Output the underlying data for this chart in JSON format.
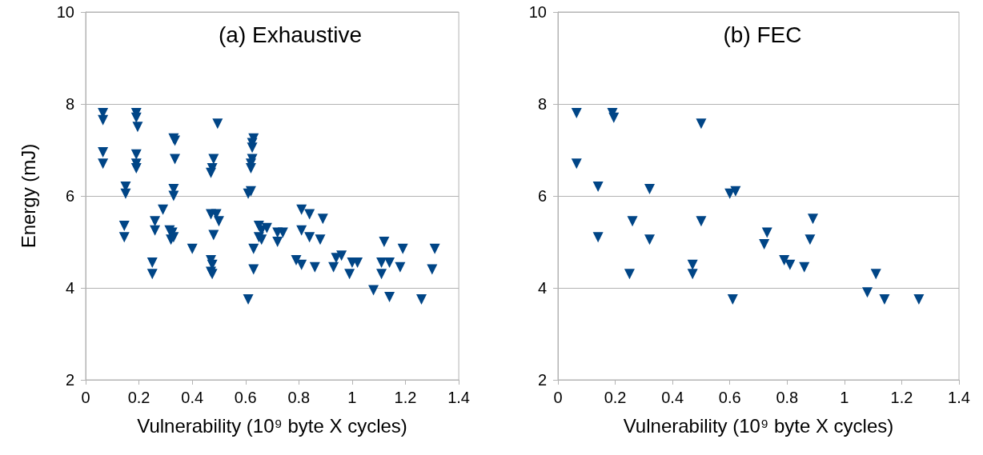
{
  "chart_data": [
    {
      "type": "scatter",
      "title": "(a) Exhaustive",
      "xlabel": "Vulnerability (10⁹ byte X cycles)",
      "ylabel": "Energy (mJ)",
      "xlim": [
        0,
        1.4
      ],
      "xticks": [
        0,
        0.2,
        0.4,
        0.6,
        0.8,
        1,
        1.2,
        1.4
      ],
      "ylim": [
        2,
        10
      ],
      "yticks": [
        2,
        4,
        6,
        8,
        10
      ],
      "grid": "y",
      "marker": "triangle",
      "series": [
        {
          "color": "#004586",
          "x": [
            0.065,
            0.065,
            0.065,
            0.065,
            0.19,
            0.19,
            0.195,
            0.19,
            0.19,
            0.19,
            0.15,
            0.15,
            0.145,
            0.145,
            0.25,
            0.25,
            0.26,
            0.26,
            0.29,
            0.33,
            0.335,
            0.335,
            0.33,
            0.33,
            0.315,
            0.32,
            0.325,
            0.33,
            0.4,
            0.47,
            0.47,
            0.47,
            0.475,
            0.475,
            0.48,
            0.475,
            0.47,
            0.49,
            0.48,
            0.495,
            0.5,
            0.61,
            0.61,
            0.62,
            0.625,
            0.625,
            0.63,
            0.62,
            0.625,
            0.62,
            0.63,
            0.63,
            0.65,
            0.65,
            0.66,
            0.66,
            0.68,
            0.72,
            0.72,
            0.74,
            0.79,
            0.81,
            0.81,
            0.81,
            0.84,
            0.84,
            0.86,
            0.89,
            0.88,
            0.93,
            0.94,
            0.96,
            0.99,
            1.0,
            1.02,
            1.08,
            1.11,
            1.11,
            1.12,
            1.14,
            1.14,
            1.18,
            1.19,
            1.26,
            1.3,
            1.31
          ],
          "values": [
            7.8,
            7.65,
            6.95,
            6.7,
            7.8,
            7.7,
            7.5,
            6.9,
            6.7,
            6.6,
            6.2,
            6.05,
            5.35,
            5.1,
            4.55,
            4.3,
            5.45,
            5.25,
            5.7,
            7.25,
            7.2,
            6.8,
            6.15,
            6.0,
            5.25,
            5.05,
            5.2,
            5.1,
            4.85,
            5.6,
            4.6,
            4.35,
            4.3,
            4.5,
            6.8,
            6.6,
            6.5,
            5.6,
            5.15,
            7.57,
            5.45,
            6.05,
            3.75,
            6.1,
            7.15,
            7.05,
            7.25,
            6.7,
            6.8,
            6.6,
            4.4,
            4.85,
            5.35,
            5.1,
            5.25,
            5.05,
            5.3,
            5.2,
            5.0,
            5.2,
            4.6,
            4.5,
            5.7,
            5.25,
            5.6,
            5.1,
            4.45,
            5.5,
            5.05,
            4.45,
            4.65,
            4.7,
            4.3,
            4.55,
            4.55,
            3.95,
            4.55,
            4.3,
            5.0,
            3.8,
            4.55,
            4.45,
            4.85,
            3.75,
            4.4,
            4.85
          ]
        }
      ]
    },
    {
      "type": "scatter",
      "title": "(b) FEC",
      "xlabel": "Vulnerability (10⁹ byte X cycles)",
      "xlim": [
        0,
        1.4
      ],
      "xticks": [
        0,
        0.2,
        0.4,
        0.6,
        0.8,
        1,
        1.2,
        1.4
      ],
      "ylim": [
        2,
        10
      ],
      "yticks": [
        2,
        4,
        6,
        8,
        10
      ],
      "grid": "y",
      "marker": "triangle",
      "series": [
        {
          "color": "#004586",
          "x": [
            0.065,
            0.065,
            0.19,
            0.195,
            0.14,
            0.14,
            0.25,
            0.26,
            0.32,
            0.32,
            0.47,
            0.47,
            0.5,
            0.5,
            0.6,
            0.62,
            0.61,
            0.72,
            0.73,
            0.79,
            0.81,
            0.86,
            0.88,
            0.89,
            1.08,
            1.11,
            1.14,
            1.26
          ],
          "values": [
            7.8,
            6.7,
            7.8,
            7.7,
            6.2,
            5.1,
            4.3,
            5.45,
            6.15,
            5.05,
            4.5,
            4.3,
            7.57,
            5.45,
            6.05,
            6.1,
            3.75,
            4.95,
            5.2,
            4.6,
            4.5,
            4.45,
            5.05,
            5.5,
            3.9,
            4.3,
            3.75,
            3.75
          ]
        }
      ]
    }
  ]
}
